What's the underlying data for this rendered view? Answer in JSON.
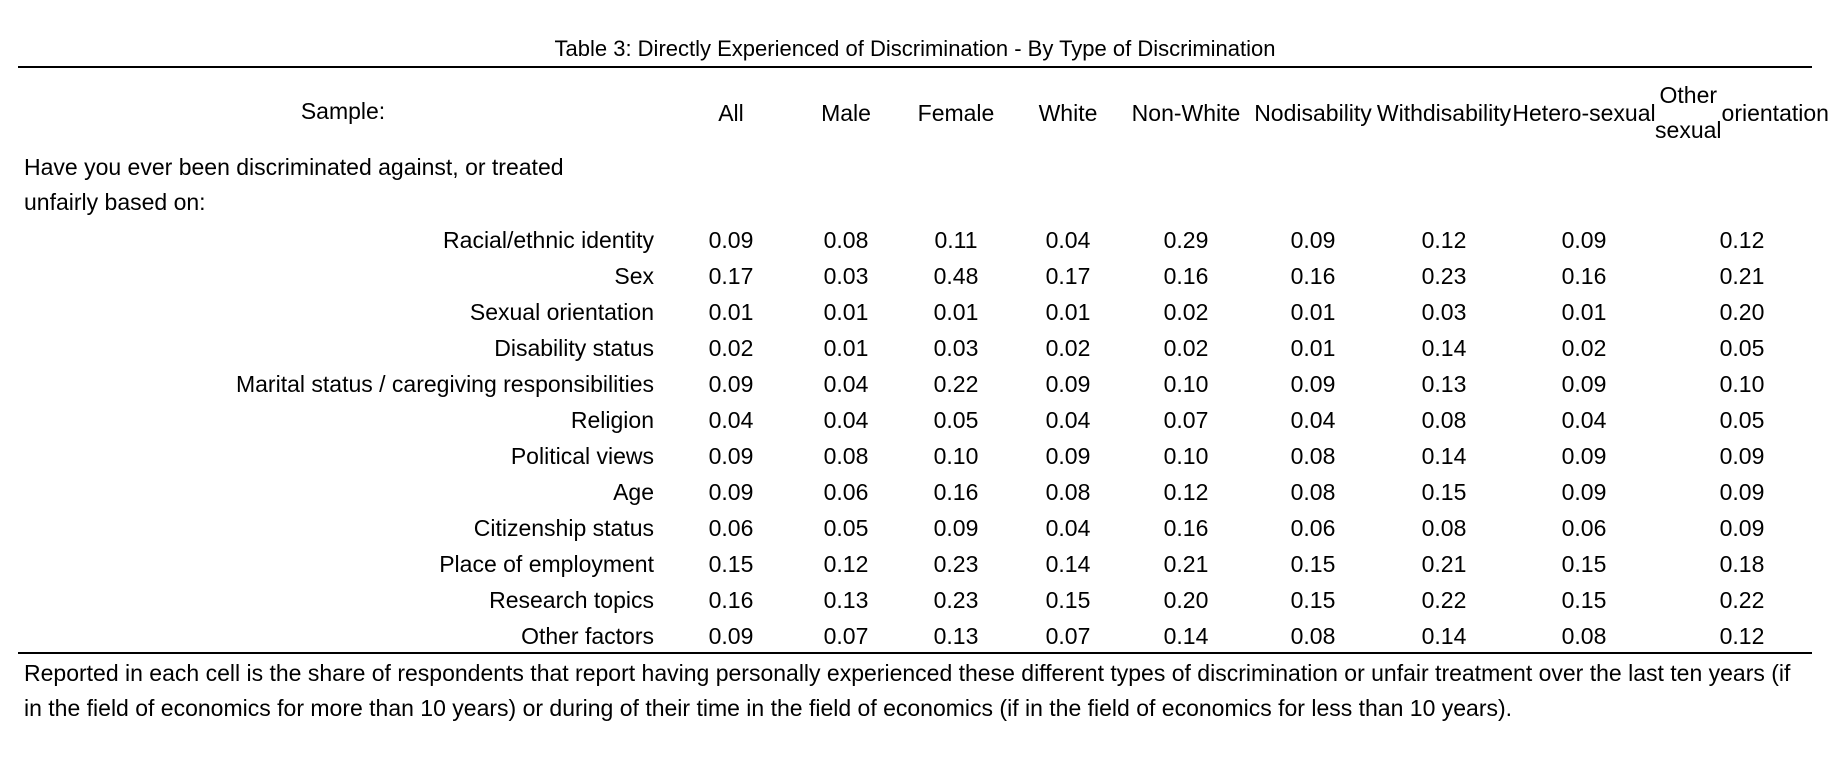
{
  "title": "Table 3: Directly Experienced of Discrimination - By Type of Discrimination",
  "header": {
    "sample_label": "Sample:",
    "columns": [
      {
        "line1": "All",
        "line2": ""
      },
      {
        "line1": "Male",
        "line2": ""
      },
      {
        "line1": "Female",
        "line2": ""
      },
      {
        "line1": "White",
        "line2": ""
      },
      {
        "line1": "Non-",
        "line2": "White"
      },
      {
        "line1": "No",
        "line2": "disability"
      },
      {
        "line1": "With",
        "line2": "disability"
      },
      {
        "line1": "Hetero-",
        "line2": "sexual"
      },
      {
        "line1": "Other sexual",
        "line2": "orientation"
      }
    ]
  },
  "question": {
    "line1": "Have you ever been discriminated against, or treated",
    "line2": "unfairly based on:"
  },
  "rows": [
    {
      "label": "Racial/ethnic identity",
      "values": [
        "0.09",
        "0.08",
        "0.11",
        "0.04",
        "0.29",
        "0.09",
        "0.12",
        "0.09",
        "0.12"
      ]
    },
    {
      "label": "Sex",
      "values": [
        "0.17",
        "0.03",
        "0.48",
        "0.17",
        "0.16",
        "0.16",
        "0.23",
        "0.16",
        "0.21"
      ]
    },
    {
      "label": "Sexual orientation",
      "values": [
        "0.01",
        "0.01",
        "0.01",
        "0.01",
        "0.02",
        "0.01",
        "0.03",
        "0.01",
        "0.20"
      ]
    },
    {
      "label": "Disability status",
      "values": [
        "0.02",
        "0.01",
        "0.03",
        "0.02",
        "0.02",
        "0.01",
        "0.14",
        "0.02",
        "0.05"
      ]
    },
    {
      "label": "Marital status / caregiving responsibilities",
      "values": [
        "0.09",
        "0.04",
        "0.22",
        "0.09",
        "0.10",
        "0.09",
        "0.13",
        "0.09",
        "0.10"
      ]
    },
    {
      "label": "Religion",
      "values": [
        "0.04",
        "0.04",
        "0.05",
        "0.04",
        "0.07",
        "0.04",
        "0.08",
        "0.04",
        "0.05"
      ]
    },
    {
      "label": "Political views",
      "values": [
        "0.09",
        "0.08",
        "0.10",
        "0.09",
        "0.10",
        "0.08",
        "0.14",
        "0.09",
        "0.09"
      ]
    },
    {
      "label": "Age",
      "values": [
        "0.09",
        "0.06",
        "0.16",
        "0.08",
        "0.12",
        "0.08",
        "0.15",
        "0.09",
        "0.09"
      ]
    },
    {
      "label": "Citizenship status",
      "values": [
        "0.06",
        "0.05",
        "0.09",
        "0.04",
        "0.16",
        "0.06",
        "0.08",
        "0.06",
        "0.09"
      ]
    },
    {
      "label": "Place of employment",
      "values": [
        "0.15",
        "0.12",
        "0.23",
        "0.14",
        "0.21",
        "0.15",
        "0.21",
        "0.15",
        "0.18"
      ]
    },
    {
      "label": "Research topics",
      "values": [
        "0.16",
        "0.13",
        "0.23",
        "0.15",
        "0.20",
        "0.15",
        "0.22",
        "0.15",
        "0.22"
      ]
    },
    {
      "label": "Other factors",
      "values": [
        "0.09",
        "0.07",
        "0.13",
        "0.07",
        "0.14",
        "0.08",
        "0.14",
        "0.08",
        "0.12"
      ]
    }
  ],
  "note": "Reported in each cell is the share of respondents that report having personally experienced these different types of discrimination or unfair treatment over the last ten years (if in the field of economics for more than 10 years) or during of their time in the field of economics (if in the field of economics for less than 10 years)."
}
